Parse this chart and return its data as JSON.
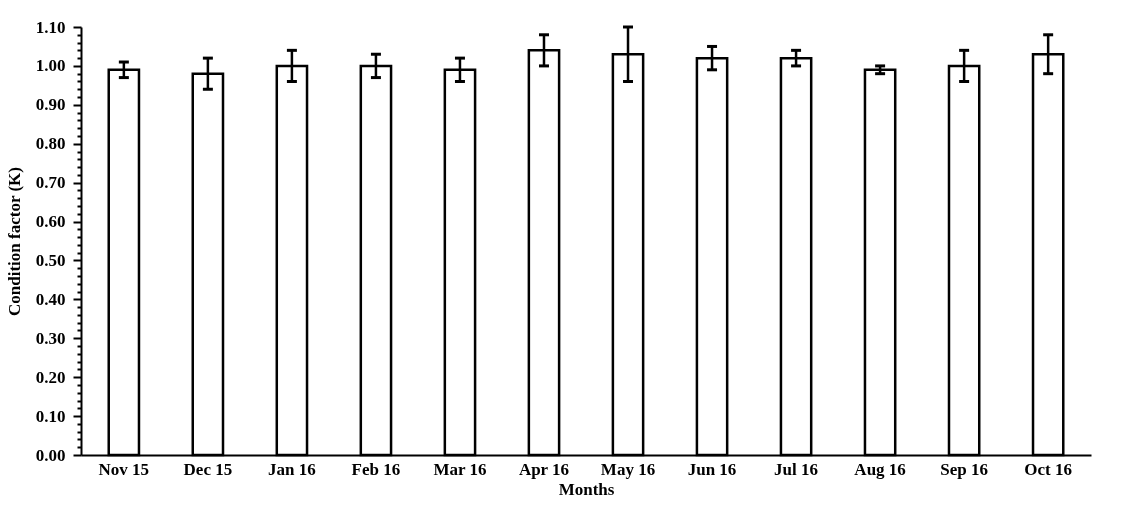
{
  "chart_data": {
    "type": "bar",
    "xlabel": "Months",
    "ylabel": "Condition factor (K)",
    "categories": [
      "Nov 15",
      "Dec 15",
      "Jan 16",
      "Feb 16",
      "Mar 16",
      "Apr 16",
      "May 16",
      "Jun 16",
      "Jul 16",
      "Aug 16",
      "Sep 16",
      "Oct 16"
    ],
    "values": [
      0.99,
      0.98,
      1.0,
      1.0,
      0.99,
      1.04,
      1.03,
      1.02,
      1.02,
      0.99,
      1.0,
      1.03
    ],
    "errors": [
      0.02,
      0.04,
      0.04,
      0.03,
      0.03,
      0.04,
      0.07,
      0.03,
      0.02,
      0.01,
      0.04,
      0.05
    ],
    "color": "#ffffff",
    "ylim": [
      0,
      1.1
    ],
    "yticks": [
      {
        "value": 0,
        "label": "0.00"
      },
      {
        "value": 0.02,
        "label": null
      },
      {
        "value": 0.04,
        "label": null
      },
      {
        "value": 0.06,
        "label": null
      },
      {
        "value": 0.08,
        "label": null
      },
      {
        "value": 0.1,
        "label": "0.10"
      },
      {
        "value": 0.12,
        "label": null
      },
      {
        "value": 0.14,
        "label": null
      },
      {
        "value": 0.16,
        "label": null
      },
      {
        "value": 0.18,
        "label": null
      },
      {
        "value": 0.2,
        "label": "0.20"
      },
      {
        "value": 0.22,
        "label": null
      },
      {
        "value": 0.24,
        "label": null
      },
      {
        "value": 0.26,
        "label": null
      },
      {
        "value": 0.28,
        "label": null
      },
      {
        "value": 0.3,
        "label": "0.30"
      },
      {
        "value": 0.32,
        "label": null
      },
      {
        "value": 0.34,
        "label": null
      },
      {
        "value": 0.36,
        "label": null
      },
      {
        "value": 0.38,
        "label": null
      },
      {
        "value": 0.4,
        "label": "0.40"
      },
      {
        "value": 0.42,
        "label": null
      },
      {
        "value": 0.44,
        "label": null
      },
      {
        "value": 0.46,
        "label": null
      },
      {
        "value": 0.48,
        "label": null
      },
      {
        "value": 0.5,
        "label": "0.50"
      },
      {
        "value": 0.52,
        "label": null
      },
      {
        "value": 0.54,
        "label": null
      },
      {
        "value": 0.56,
        "label": null
      },
      {
        "value": 0.58,
        "label": null
      },
      {
        "value": 0.6,
        "label": "0.60"
      },
      {
        "value": 0.62,
        "label": null
      },
      {
        "value": 0.64,
        "label": null
      },
      {
        "value": 0.66,
        "label": null
      },
      {
        "value": 0.68,
        "label": null
      },
      {
        "value": 0.7,
        "label": "0.70"
      },
      {
        "value": 0.72,
        "label": null
      },
      {
        "value": 0.74,
        "label": null
      },
      {
        "value": 0.76,
        "label": null
      },
      {
        "value": 0.78,
        "label": null
      },
      {
        "value": 0.8,
        "label": "0.80"
      },
      {
        "value": 0.82,
        "label": null
      },
      {
        "value": 0.84,
        "label": null
      },
      {
        "value": 0.86,
        "label": null
      },
      {
        "value": 0.88,
        "label": null
      },
      {
        "value": 0.9,
        "label": "0.90"
      },
      {
        "value": 0.92,
        "label": null
      },
      {
        "value": 0.94,
        "label": null
      },
      {
        "value": 0.96,
        "label": null
      },
      {
        "value": 0.98,
        "label": null
      },
      {
        "value": 1.0,
        "label": "1.00"
      },
      {
        "value": 1.02,
        "label": null
      },
      {
        "value": 1.04,
        "label": null
      },
      {
        "value": 1.06,
        "label": null
      },
      {
        "value": 1.08,
        "label": null
      },
      {
        "value": 1.1,
        "label": "1.10"
      }
    ],
    "grid": false
  }
}
